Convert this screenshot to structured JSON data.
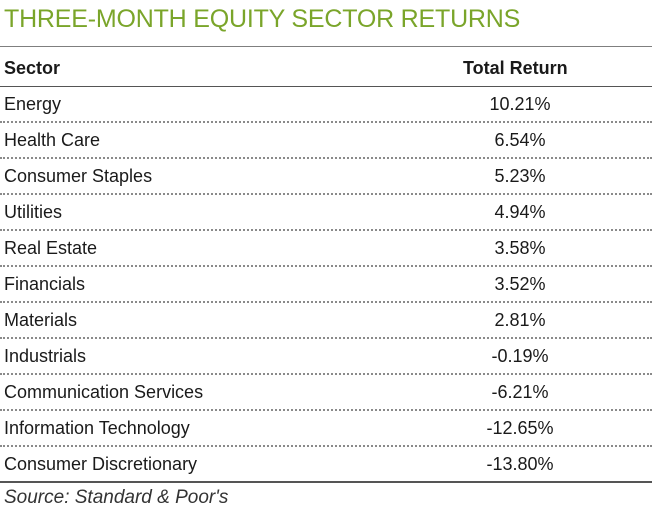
{
  "title": "THREE-MONTH EQUITY SECTOR RETURNS",
  "header": {
    "sector": "Sector",
    "total_return": "Total Return"
  },
  "rows": [
    {
      "sector": "Energy",
      "total_return": "10.21%"
    },
    {
      "sector": "Health Care",
      "total_return": "6.54%"
    },
    {
      "sector": "Consumer Staples",
      "total_return": "5.23%"
    },
    {
      "sector": "Utilities",
      "total_return": "4.94%"
    },
    {
      "sector": "Real Estate",
      "total_return": "3.58%"
    },
    {
      "sector": "Financials",
      "total_return": "3.52%"
    },
    {
      "sector": "Materials",
      "total_return": "2.81%"
    },
    {
      "sector": "Industrials",
      "total_return": "-0.19%"
    },
    {
      "sector": "Communication Services",
      "total_return": "-6.21%"
    },
    {
      "sector": "Information Technology",
      "total_return": "-12.65%"
    },
    {
      "sector": "Consumer Discretionary",
      "total_return": "-13.80%"
    }
  ],
  "source": "Source: Standard & Poor's",
  "colors": {
    "title": "#7aa52a"
  }
}
